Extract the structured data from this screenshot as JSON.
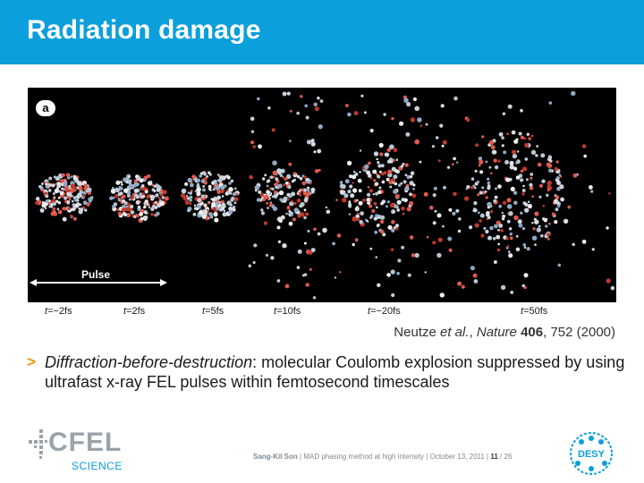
{
  "slide": {
    "title": "Radiation damage"
  },
  "figure": {
    "panel_label": "a",
    "pulse_label": "Pulse",
    "time_labels": [
      {
        "var": "t",
        "value": "=−2fs"
      },
      {
        "var": "t",
        "value": "=2fs"
      },
      {
        "var": "t",
        "value": "=5fs"
      },
      {
        "var": "t",
        "value": "=10fs"
      },
      {
        "var": "t",
        "value": "=−20fs"
      },
      {
        "var": "t",
        "value": "=50fs"
      }
    ]
  },
  "citation": {
    "authors": "Neutze ",
    "etal": "et al.",
    "sep1": ", ",
    "journal": "Nature",
    "sep2": " ",
    "volume": "406",
    "rest": ", 752 (2000)"
  },
  "bullet": {
    "marker": ">",
    "emphasis": "Diffraction-before-destruction",
    "text": ": molecular Coulomb explosion suppressed by using ultrafast x-ray FEL pulses within femtosecond timescales"
  },
  "logos": {
    "cfel": "CFEL",
    "science": "SCIENCE",
    "desy": "DESY"
  },
  "footer": {
    "author": "Sang-Kil Son",
    "sep": "  |  ",
    "talk": "MAD phasing method at high intensity",
    "date": "October 13, 2011",
    "page": "11",
    "total": " / 26"
  },
  "colors": {
    "accent": "#0b9fdc",
    "bullet": "#f29100"
  }
}
